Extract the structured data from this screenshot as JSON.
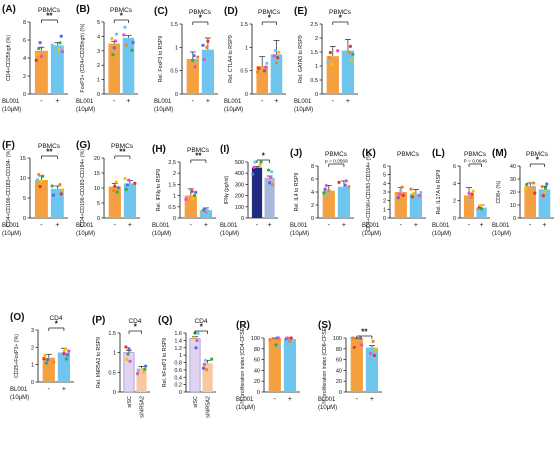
{
  "colors": {
    "orange": "#f5a040",
    "blue": "#6ec6ee",
    "navy": "#202a80",
    "lavender": "#e0d4f2",
    "peach": "#f7c9a0"
  },
  "panels": [
    {
      "id": "A",
      "title": "PBMCs",
      "ylabel": "CD4+CD25high (%)",
      "ymax": 8,
      "ticks": [
        0,
        2,
        4,
        6,
        8
      ],
      "sig": "**",
      "xgroup": "BL001 (10μM)",
      "xl": [
        "-",
        "+"
      ],
      "chart_data": {
        "type": "bar",
        "categories": [
          "-",
          "+"
        ],
        "values": [
          4.8,
          5.4
        ],
        "errors": [
          0.4,
          0.3
        ]
      },
      "style": "ob"
    },
    {
      "id": "B",
      "title": "PBMCs",
      "ylabel": "FoxP3+ (CD4+CD25high) (%)",
      "ymax": 5,
      "ticks": [
        0,
        1,
        2,
        3,
        4,
        5
      ],
      "sig": "*",
      "xgroup": "BL001 (10μM)",
      "xl": [
        "-",
        "+"
      ],
      "chart_data": {
        "type": "bar",
        "categories": [
          "-",
          "+"
        ],
        "values": [
          3.5,
          3.9
        ],
        "errors": [
          0.15,
          0.15
        ]
      },
      "style": "ob"
    },
    {
      "id": "C",
      "title": "PBMCs",
      "ylabel": "Rel. FoxP3 to RSP9",
      "ymax": 1.5,
      "ticks": [
        0.0,
        0.5,
        1.0,
        1.5
      ],
      "sig": "*",
      "xgroup": "BL001 (10μM)",
      "xl": [
        "-",
        "+"
      ],
      "chart_data": {
        "type": "bar",
        "categories": [
          "-",
          "+"
        ],
        "values": [
          0.75,
          0.95
        ],
        "errors": [
          0.15,
          0.25
        ]
      },
      "style": "ob"
    },
    {
      "id": "D",
      "title": "PBMCs",
      "ylabel": "Rel. CTLA4 to RSP9",
      "ymax": 1.5,
      "ticks": [
        0.0,
        0.5,
        1.0,
        1.5
      ],
      "sig": "*",
      "xgroup": "BL001 (10μM)",
      "xl": [
        "-",
        "+"
      ],
      "chart_data": {
        "type": "bar",
        "categories": [
          "-",
          "+"
        ],
        "values": [
          0.6,
          0.85
        ],
        "errors": [
          0.2,
          0.3
        ]
      },
      "style": "ob"
    },
    {
      "id": "E",
      "title": "PBMCs",
      "ylabel": "Rel. GATA3 to RSP9",
      "ymax": 2.5,
      "ticks": [
        0.0,
        0.5,
        1.0,
        1.5,
        2.0,
        2.5
      ],
      "sig": "*",
      "xgroup": "BL001 (10μM)",
      "xl": [
        "-",
        "+"
      ],
      "chart_data": {
        "type": "bar",
        "categories": [
          "-",
          "+"
        ],
        "values": [
          1.35,
          1.55
        ],
        "errors": [
          0.35,
          0.4
        ]
      },
      "style": "ob"
    },
    {
      "id": "F",
      "title": "PBMCs",
      "ylabel": "CD4+CD196-CD183+CD194- (%)",
      "ymax": 15,
      "ticks": [
        0,
        5,
        10,
        15
      ],
      "sig": "**",
      "xgroup": "BL001 (10μM)",
      "xl": [
        "-",
        "+"
      ],
      "chart_data": {
        "type": "bar",
        "categories": [
          "-",
          "+"
        ],
        "values": [
          9.5,
          7.3
        ],
        "errors": [
          1.0,
          0.7
        ]
      },
      "style": "ob"
    },
    {
      "id": "G",
      "title": "PBMCs",
      "ylabel": "CD4+CD196-CD183-CD194+ (%)",
      "ymax": 20,
      "ticks": [
        0,
        5,
        10,
        15,
        20
      ],
      "sig": "**",
      "xgroup": "BL001 (10μM)",
      "xl": [
        "-",
        "+"
      ],
      "chart_data": {
        "type": "bar",
        "categories": [
          "-",
          "+"
        ],
        "values": [
          10.5,
          11.5
        ],
        "errors": [
          1.0,
          1.0
        ]
      },
      "style": "ob"
    },
    {
      "id": "H",
      "title": "PBMCs",
      "ylabel": "Rel. IFNγ to RSP9",
      "ymax": 2.5,
      "ticks": [
        0.0,
        0.5,
        1.0,
        1.5,
        2.0,
        2.5
      ],
      "sig": "**",
      "xgroup": "BL001 (10μM)",
      "xl": [
        "-",
        "+"
      ],
      "chart_data": {
        "type": "bar",
        "categories": [
          "-",
          "+"
        ],
        "values": [
          1.0,
          0.35
        ],
        "errors": [
          0.3,
          0.1
        ]
      },
      "style": "ob"
    },
    {
      "id": "I",
      "title": "",
      "ylabel": "IFNγ (pg/ml)",
      "ymax": 500,
      "ticks": [
        0,
        100,
        200,
        300,
        400,
        500
      ],
      "sig": "*",
      "xgroup": "BL001 (10μM)",
      "xl": [
        "-",
        "+"
      ],
      "chart_data": {
        "type": "bar",
        "categories": [
          "-",
          "+"
        ],
        "values": [
          450,
          360
        ],
        "errors": [
          10,
          15
        ]
      },
      "style": "dark"
    },
    {
      "id": "J",
      "title": "PBMCs",
      "ylabel": "Rel. IL4 to RSP9",
      "ymax": 8,
      "ticks": [
        0,
        2,
        4,
        6,
        8
      ],
      "sig": "p = 0.0568",
      "xgroup": "BL001 (10μM)",
      "xl": [
        "-",
        "+"
      ],
      "chart_data": {
        "type": "bar",
        "categories": [
          "-",
          "+"
        ],
        "values": [
          4.2,
          4.8
        ],
        "errors": [
          0.8,
          0.9
        ]
      },
      "style": "ob"
    },
    {
      "id": "K",
      "title": "PBMCs",
      "ylabel": "CD4+CD196+CD183-CD194+ (%)",
      "ymax": 6,
      "ticks": [
        0,
        1,
        2,
        3,
        4,
        5,
        6
      ],
      "sig": "",
      "xgroup": "BL001 (10μM)",
      "xl": [
        "-",
        "+"
      ],
      "chart_data": {
        "type": "bar",
        "categories": [
          "-",
          "+"
        ],
        "values": [
          3.0,
          2.8
        ],
        "errors": [
          0.5,
          0.5
        ]
      },
      "style": "ob"
    },
    {
      "id": "L",
      "title": "PBMCs",
      "ylabel": "Rel. IL17A to RSP9",
      "ymax": 6,
      "ticks": [
        0,
        2,
        4,
        6
      ],
      "sig": "P = 0.0646",
      "xgroup": "BL001 (10μM)",
      "xl": [
        "-",
        "+"
      ],
      "chart_data": {
        "type": "bar",
        "categories": [
          "-",
          "+"
        ],
        "values": [
          2.6,
          1.2
        ],
        "errors": [
          0.9,
          0.3
        ]
      },
      "style": "ob"
    },
    {
      "id": "M",
      "title": "PBMCs",
      "ylabel": "CD8+ (%)",
      "ymax": 40,
      "ticks": [
        0,
        10,
        20,
        30,
        40
      ],
      "sig": "*",
      "xgroup": "BL001 (10μM)",
      "xl": [
        "-",
        "+"
      ],
      "chart_data": {
        "type": "bar",
        "categories": [
          "-",
          "+"
        ],
        "values": [
          24.5,
          22.0
        ],
        "errors": [
          2.5,
          2.5
        ]
      },
      "style": "ob"
    },
    {
      "id": "O",
      "title": "CD4",
      "ylabel": "CD25+FoxP3+ (%)",
      "ymax": 3,
      "ticks": [
        0,
        1,
        2,
        3
      ],
      "sig": "*",
      "xgroup": "BL001 (10μM)",
      "xl": [
        "-",
        "+"
      ],
      "chart_data": {
        "type": "bar",
        "categories": [
          "-",
          "+"
        ],
        "values": [
          1.4,
          1.7
        ],
        "errors": [
          0.2,
          0.25
        ]
      },
      "style": "ob"
    },
    {
      "id": "P",
      "title": "CD4",
      "ylabel": "Rel. hNR5A2 to RSP9",
      "ymax": 1.5,
      "ticks": [
        0.0,
        0.5,
        1.0,
        1.5
      ],
      "sig": "*",
      "xgroup": "",
      "xl": [
        "siSC",
        "siNR5A2"
      ],
      "chart_data": {
        "type": "bar",
        "categories": [
          "siSC",
          "siNR5A2"
        ],
        "values": [
          1.0,
          0.6
        ],
        "errors": [
          0.05,
          0.05
        ]
      },
      "style": "pp"
    },
    {
      "id": "Q",
      "title": "CD4",
      "ylabel": "Rel. hFoxP3 to RSP9",
      "ymax": 1.6,
      "ticks": [
        0.0,
        0.2,
        0.4,
        0.6,
        0.8,
        1.0,
        1.2,
        1.4,
        1.6
      ],
      "sig": "*",
      "xgroup": "",
      "xl": [
        "siSC",
        "siNR5A2"
      ],
      "chart_data": {
        "type": "bar",
        "categories": [
          "siSC",
          "siNR5A2"
        ],
        "values": [
          1.45,
          0.78
        ],
        "errors": [
          0.05,
          0.08
        ]
      },
      "style": "pp"
    },
    {
      "id": "R",
      "title": "",
      "ylabel": "% proliferation index (CD4-CFSE)",
      "ymax": 100,
      "ticks": [
        0,
        20,
        40,
        60,
        80,
        100
      ],
      "sig": "",
      "xgroup": "BL001 (10μM)",
      "xl": [
        "-",
        "+"
      ],
      "chart_data": {
        "type": "bar",
        "categories": [
          "-",
          "+"
        ],
        "values": [
          100,
          98
        ],
        "errors": [
          2,
          4
        ]
      },
      "style": "ob"
    },
    {
      "id": "S",
      "title": "",
      "ylabel": "% proliferation index (CD8-CFSE)",
      "ymax": 100,
      "ticks": [
        0,
        20,
        40,
        60,
        80,
        100
      ],
      "sig": "**",
      "xgroup": "BL001 (10μM)",
      "xl": [
        "-",
        "+"
      ],
      "chart_data": {
        "type": "bar",
        "categories": [
          "-",
          "+"
        ],
        "values": [
          100,
          82
        ],
        "errors": [
          2,
          4
        ]
      },
      "style": "ob"
    }
  ]
}
